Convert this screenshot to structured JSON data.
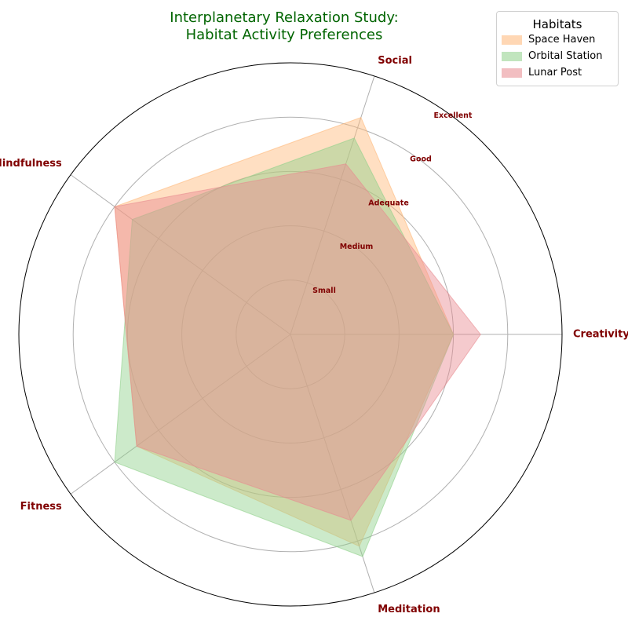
{
  "chart_data": {
    "type": "radar",
    "title_lines": [
      "Interplanetary Relaxation Study:",
      "Habitat Activity Preferences"
    ],
    "title_color": "#006400",
    "label_color": "#800000",
    "axes": [
      "Creativity",
      "Social",
      "Mindfulness",
      "Fitness",
      "Meditation"
    ],
    "scale_labels": [
      "Small",
      "Medium",
      "Adequate",
      "Good",
      "Excellent"
    ],
    "rlim": [
      0,
      5
    ],
    "grid": true,
    "legend": {
      "title": "Habitats",
      "placement": "top-right"
    },
    "series": [
      {
        "name": "Space Haven",
        "values": [
          3.0,
          4.2,
          4.0,
          3.5,
          4.1
        ],
        "color": "#ffb878"
      },
      {
        "name": "Orbital Station",
        "values": [
          3.0,
          3.8,
          3.6,
          4.0,
          4.3
        ],
        "color": "#8fd18a"
      },
      {
        "name": "Lunar Post",
        "values": [
          3.5,
          3.3,
          4.0,
          3.5,
          3.6
        ],
        "color": "#e88a90"
      }
    ]
  }
}
